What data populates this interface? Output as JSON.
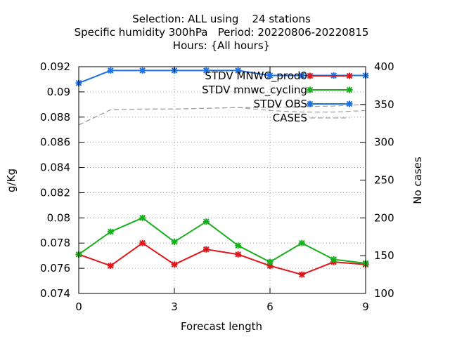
{
  "chart_data": {
    "type": "line",
    "title_lines": [
      "Selection: ALL using    24 stations",
      "Specific humidity 300hPa   Period: 20220806-20220815",
      "Hours: {All hours}"
    ],
    "xlabel": "Forecast length",
    "ylabel": "g/Kg",
    "y2label": "No cases",
    "xlim": [
      0,
      9
    ],
    "ylim": [
      0.074,
      0.092
    ],
    "y2lim": [
      100,
      400
    ],
    "x_ticks": [
      0,
      3,
      6,
      9
    ],
    "y_ticks": [
      0.074,
      0.076,
      0.078,
      0.08,
      0.082,
      0.084,
      0.086,
      0.088,
      0.09,
      0.092
    ],
    "y_tick_labels": [
      "0.074",
      "0.076",
      "0.078",
      "0.08",
      "0.082",
      "0.084",
      "0.086",
      "0.088",
      "0.09",
      "0.092"
    ],
    "y2_ticks": [
      100,
      150,
      200,
      250,
      300,
      350,
      400
    ],
    "grid": true,
    "legend_position": "top-right",
    "x": [
      0,
      1,
      2,
      3,
      4,
      5,
      6,
      7,
      8,
      9
    ],
    "series": [
      {
        "name": "STDV MNWC_prod0",
        "color": "#e0161b",
        "axis": "y",
        "values": [
          0.0771,
          0.0762,
          0.078,
          0.0763,
          0.0775,
          0.0771,
          0.0762,
          0.0755,
          0.0765,
          0.0763
        ]
      },
      {
        "name": "STDV mnwc_cycling",
        "color": "#16b01c",
        "axis": "y",
        "values": [
          0.0771,
          0.0789,
          0.08,
          0.0781,
          0.0797,
          0.0778,
          0.0765,
          0.078,
          0.0767,
          0.0764
        ]
      },
      {
        "name": "STDV OBS",
        "color": "#1a72e6",
        "axis": "y",
        "values": [
          0.0907,
          0.0917,
          0.0917,
          0.0917,
          0.0917,
          0.0917,
          0.0913,
          0.0913,
          0.0913,
          0.0913
        ]
      },
      {
        "name": "CASES",
        "color": "#a0a0a0",
        "axis": "y2",
        "dashed": true,
        "x": [
          0,
          1,
          2,
          3,
          4,
          5,
          6,
          7,
          8,
          9
        ],
        "values": [
          323,
          343,
          344,
          344,
          345,
          346,
          342,
          340,
          340,
          342
        ],
        "values_alt": [
          323,
          343,
          344,
          344,
          345,
          346,
          346,
          347,
          348,
          350
        ]
      }
    ]
  }
}
